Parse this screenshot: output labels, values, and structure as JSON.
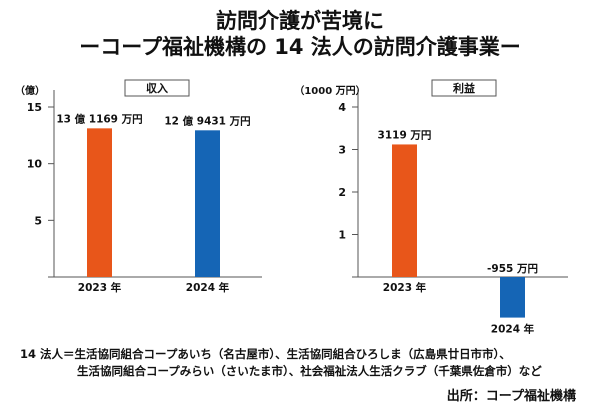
{
  "title": {
    "line1": "訪問介護が苦境に",
    "line2": "ーコープ福祉機構の 14 法人の訪問介護事業ー"
  },
  "chart_data": [
    {
      "type": "bar",
      "title": "収入",
      "ylabel": "（億）",
      "xlabel": "",
      "categories": [
        "2023 年",
        "2024 年"
      ],
      "values": [
        13.1169,
        12.9431
      ],
      "data_labels": [
        "13 億 1169 万円",
        "12 億 9431 万円"
      ],
      "colors": [
        "#e8561a",
        "#1565b5"
      ],
      "ylim": [
        0,
        15
      ],
      "yticks": [
        5,
        10,
        15
      ],
      "grid": false,
      "legend": "none"
    },
    {
      "type": "bar",
      "title": "利益",
      "ylabel": "（1000 万円）",
      "xlabel": "",
      "categories": [
        "2023 年",
        "2024 年"
      ],
      "values": [
        3.119,
        -0.955
      ],
      "data_labels": [
        "3119 万円",
        "-955 万円"
      ],
      "colors": [
        "#e8561a",
        "#1565b5"
      ],
      "ylim": [
        -1,
        4
      ],
      "yticks": [
        1,
        2,
        3,
        4
      ],
      "grid": false,
      "legend": "none"
    }
  ],
  "notes": {
    "line1": "14 法人＝生活協同組合コープあいち（名古屋市）、生活協同組合ひろしま（広島県廿日市市）、",
    "line2": "生活協同組合コープみらい（さいたま市）、社会福祉法人生活クラブ（千葉県佐倉市）など"
  },
  "source": "出所：コープ福祉機構"
}
